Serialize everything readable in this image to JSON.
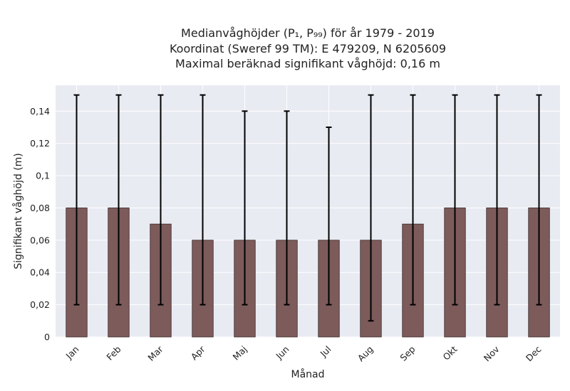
{
  "chart_data": {
    "type": "bar",
    "title_lines": [
      "Medianvåghöjder (P₁, P₉₉) för år 1979 - 2019",
      "Koordinat (Sweref 99 TM): E 479209, N 6205609",
      "Maximal beräknad signifikant våghöjd: 0,16 m"
    ],
    "xlabel": "Månad",
    "ylabel": "Signifikant våghöjd (m)",
    "categories": [
      "Jan",
      "Feb",
      "Mar",
      "Apr",
      "Maj",
      "Jun",
      "Jul",
      "Aug",
      "Sep",
      "Okt",
      "Nov",
      "Dec"
    ],
    "values": [
      0.08,
      0.08,
      0.07,
      0.06,
      0.06,
      0.06,
      0.06,
      0.06,
      0.07,
      0.08,
      0.08,
      0.08
    ],
    "p1": [
      0.02,
      0.02,
      0.02,
      0.02,
      0.02,
      0.02,
      0.02,
      0.01,
      0.02,
      0.02,
      0.02,
      0.02
    ],
    "p99": [
      0.15,
      0.15,
      0.15,
      0.15,
      0.14,
      0.14,
      0.13,
      0.15,
      0.15,
      0.15,
      0.15,
      0.15
    ],
    "ylim": [
      0,
      0.156
    ],
    "yticks": [
      0,
      0.02,
      0.04,
      0.06,
      0.08,
      0.1,
      0.12,
      0.14
    ],
    "ytick_labels": [
      "0",
      "0,02",
      "0,04",
      "0,06",
      "0,08",
      "0,1",
      "0,12",
      "0,14"
    ],
    "grid": true,
    "colors": {
      "bar": "#7d5b5b",
      "bar_edge": "#3a2a2a",
      "error": "#000000",
      "plot_bg": "#e9ebf3",
      "grid": "#ffffff"
    }
  }
}
